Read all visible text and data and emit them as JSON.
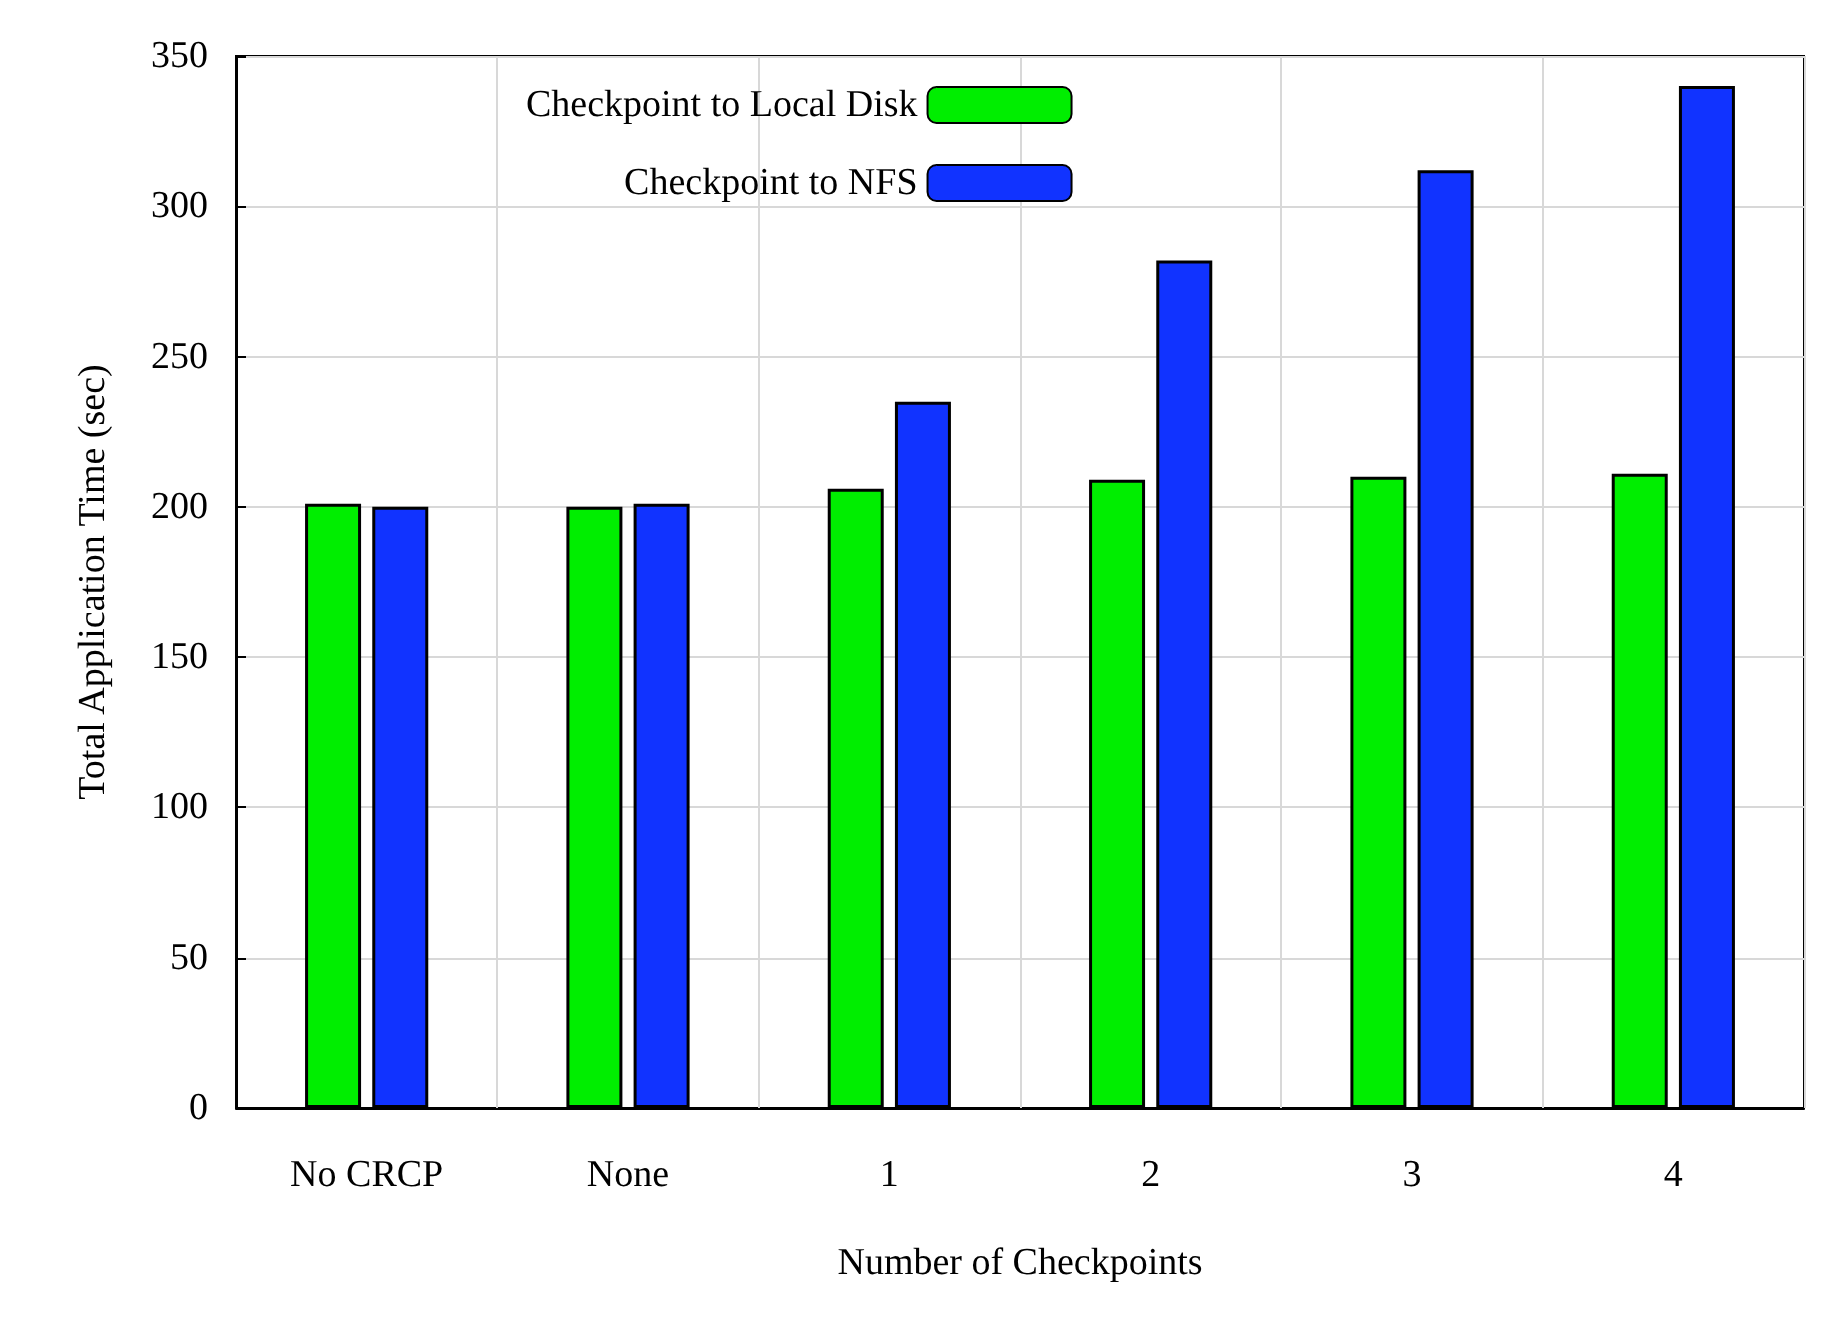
{
  "chart_data": {
    "type": "bar",
    "xlabel": "Number of Checkpoints",
    "ylabel": "Total Application Time (sec)",
    "categories": [
      "No CRCP",
      "None",
      "1",
      "2",
      "3",
      "4"
    ],
    "series": [
      {
        "name": "Checkpoint to Local Disk",
        "color": "#00ee00",
        "values": [
          201,
          200,
          206,
          209,
          210,
          211
        ]
      },
      {
        "name": "Checkpoint to NFS",
        "color": "#1133ff",
        "values": [
          200,
          201,
          235,
          282,
          312,
          340
        ]
      }
    ],
    "ylim": [
      0,
      350
    ],
    "yticks": [
      0,
      50,
      100,
      150,
      200,
      250,
      300,
      350
    ],
    "grid": true,
    "legend": "top"
  }
}
